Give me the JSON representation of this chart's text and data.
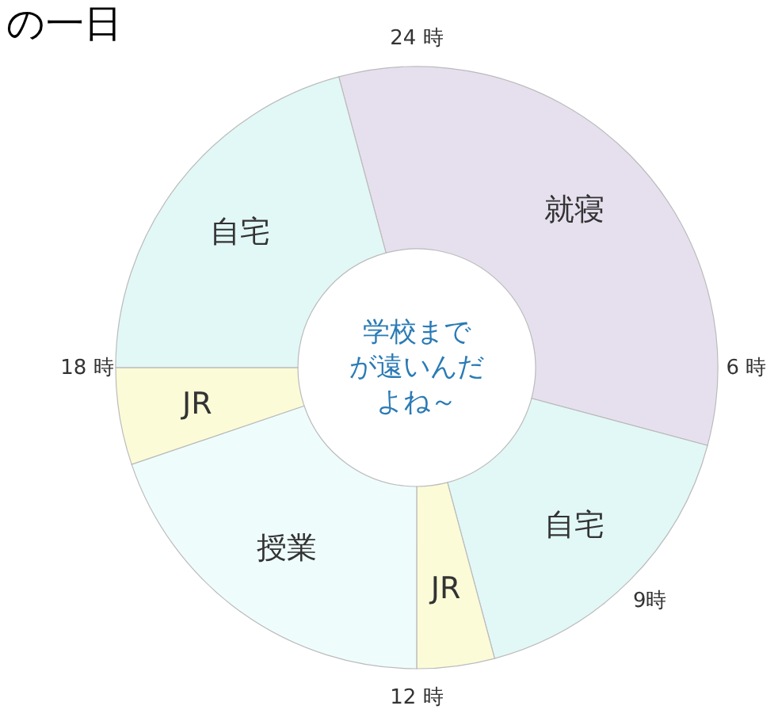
{
  "chart_data": {
    "type": "donut",
    "title": "の一日",
    "categories": [
      "就寝",
      "自宅",
      "JR",
      "授業",
      "JR",
      "自宅"
    ],
    "values": [
      33.33,
      16.67,
      4.17,
      19.79,
      5.21,
      20.83
    ],
    "colors": [
      "#e6e0ee",
      "#e2f8f6",
      "#fbfbd8",
      "#effcfc",
      "#fbfbd8",
      "#e2f8f6"
    ],
    "data_labels": false,
    "annotations": [
      "24 時",
      "6 時",
      "9時",
      "12 時",
      "18 時",
      "学校まで",
      "が遠いんだ",
      "よね～"
    ]
  }
}
